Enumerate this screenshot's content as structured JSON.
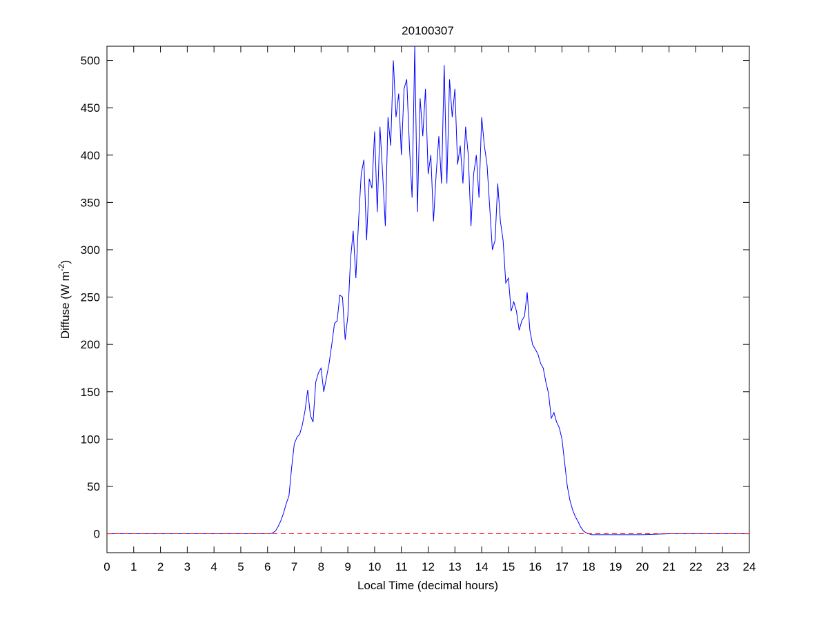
{
  "chart_data": {
    "type": "line",
    "title": "20100307",
    "xlabel": "Local Time (decimal hours)",
    "ylabel": [
      "Diffuse (W m",
      "-2",
      ")"
    ],
    "color": "#0000ff",
    "x": [
      0,
      6.0,
      6.1,
      6.2,
      6.3,
      6.4,
      6.5,
      6.6,
      6.7,
      6.8,
      6.9,
      7.0,
      7.1,
      7.2,
      7.3,
      7.4,
      7.5,
      7.6,
      7.7,
      7.8,
      7.9,
      8.0,
      8.1,
      8.2,
      8.3,
      8.4,
      8.5,
      8.6,
      8.7,
      8.8,
      8.9,
      9.0,
      9.1,
      9.2,
      9.3,
      9.4,
      9.5,
      9.6,
      9.7,
      9.8,
      9.9,
      10.0,
      10.1,
      10.2,
      10.3,
      10.4,
      10.5,
      10.6,
      10.7,
      10.8,
      10.9,
      11.0,
      11.1,
      11.2,
      11.3,
      11.4,
      11.5,
      11.6,
      11.7,
      11.8,
      11.9,
      12.0,
      12.1,
      12.2,
      12.3,
      12.4,
      12.5,
      12.6,
      12.7,
      12.8,
      12.9,
      13.0,
      13.1,
      13.2,
      13.3,
      13.4,
      13.5,
      13.6,
      13.7,
      13.8,
      13.9,
      14.0,
      14.1,
      14.2,
      14.3,
      14.4,
      14.5,
      14.6,
      14.7,
      14.8,
      14.9,
      15.0,
      15.1,
      15.2,
      15.3,
      15.4,
      15.5,
      15.6,
      15.7,
      15.8,
      15.9,
      16.0,
      16.1,
      16.2,
      16.3,
      16.4,
      16.5,
      16.6,
      16.7,
      16.8,
      16.9,
      17.0,
      17.1,
      17.2,
      17.3,
      17.4,
      17.5,
      17.6,
      17.7,
      17.8,
      17.9,
      18.0,
      18.1,
      18.2,
      18.3,
      18.4,
      18.5,
      19,
      20,
      21,
      22,
      23,
      24
    ],
    "values": [
      0,
      0,
      0,
      1,
      3,
      8,
      14,
      22,
      32,
      40,
      70,
      95,
      102,
      105,
      115,
      130,
      152,
      125,
      118,
      160,
      170,
      175,
      150,
      165,
      180,
      200,
      222,
      225,
      252,
      250,
      205,
      230,
      290,
      320,
      270,
      330,
      380,
      395,
      310,
      375,
      365,
      425,
      340,
      430,
      380,
      325,
      440,
      410,
      500,
      440,
      465,
      400,
      470,
      480,
      410,
      355,
      515,
      340,
      460,
      420,
      470,
      380,
      400,
      330,
      380,
      420,
      370,
      495,
      370,
      480,
      440,
      470,
      390,
      410,
      370,
      430,
      400,
      325,
      380,
      400,
      355,
      440,
      410,
      390,
      345,
      300,
      310,
      370,
      330,
      310,
      265,
      270,
      235,
      245,
      235,
      215,
      225,
      230,
      255,
      215,
      200,
      195,
      190,
      180,
      175,
      160,
      148,
      122,
      128,
      118,
      112,
      100,
      75,
      50,
      35,
      25,
      18,
      13,
      7,
      3,
      1,
      0,
      -1,
      -1,
      -1,
      -1,
      -1,
      -1,
      -1,
      0,
      0,
      0,
      0
    ],
    "reference_line": {
      "value": 0,
      "color": "#ff0000",
      "dashed": true
    },
    "xlim": [
      0,
      24
    ],
    "xticks": [
      0,
      1,
      2,
      3,
      4,
      5,
      6,
      7,
      8,
      9,
      10,
      11,
      12,
      13,
      14,
      15,
      16,
      17,
      18,
      19,
      20,
      21,
      22,
      23,
      24
    ],
    "ylim": [
      -20,
      515
    ],
    "yticks": [
      0,
      50,
      100,
      150,
      200,
      250,
      300,
      350,
      400,
      450,
      500
    ],
    "grid": false
  }
}
